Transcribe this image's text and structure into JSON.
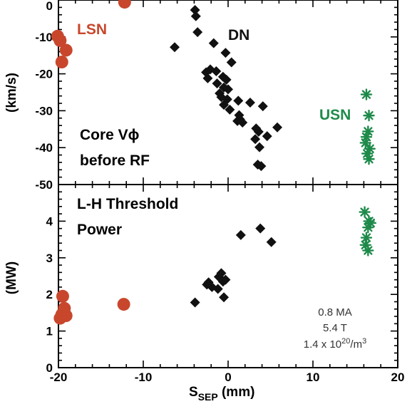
{
  "colors": {
    "lsn": "#c8472c",
    "dn": "#111111",
    "usn": "#1e8a4a"
  },
  "chart_data": [
    {
      "type": "scatter",
      "ylabel": "(km/s)",
      "xlim": [
        -20,
        20
      ],
      "ylim": [
        -50,
        0
      ],
      "yticks": [
        "0",
        "-10",
        "-20",
        "-30",
        "-40",
        "-50"
      ],
      "yticks_values": [
        0,
        -10,
        -20,
        -30,
        -40,
        -50
      ],
      "annotations": {
        "lsn": "LSN",
        "dn": "DN",
        "usn": "USN",
        "line1": "Core Vϕ",
        "line2": "before RF"
      },
      "series": [
        {
          "key": "lsn",
          "marker": "circle",
          "points": [
            [
              -12.2,
              -0.6
            ],
            [
              -20.1,
              -9.8
            ],
            [
              -19.8,
              -11
            ],
            [
              -19.1,
              -13.6
            ],
            [
              -19.6,
              -16.8
            ]
          ]
        },
        {
          "key": "dn",
          "marker": "diamond",
          "points": [
            [
              -3.9,
              -2.7
            ],
            [
              -3.8,
              -4.4
            ],
            [
              -3.6,
              -8.7
            ],
            [
              -6.3,
              -12.8
            ],
            [
              -1.7,
              -11.7
            ],
            [
              -0.3,
              -14.3
            ],
            [
              0.4,
              -16.9
            ],
            [
              -2.6,
              -19.6
            ],
            [
              -2.1,
              -18.8
            ],
            [
              -1.4,
              -19.3
            ],
            [
              -2.4,
              -21.2
            ],
            [
              -0.6,
              -20.8
            ],
            [
              -0.2,
              -21.6
            ],
            [
              -1.3,
              -22.6
            ],
            [
              -0.5,
              -23.7
            ],
            [
              0,
              -24.2
            ],
            [
              -1,
              -25.3
            ],
            [
              -0.8,
              -26.3
            ],
            [
              -0.1,
              -26.9
            ],
            [
              -0.5,
              -28.4
            ],
            [
              0.2,
              -29.7
            ],
            [
              1.2,
              -27.3
            ],
            [
              2.6,
              -27.8
            ],
            [
              4.1,
              -28.8
            ],
            [
              1.3,
              -31.2
            ],
            [
              1.4,
              -32.3
            ],
            [
              1.1,
              -32.8
            ],
            [
              1.7,
              -33.2
            ],
            [
              3.3,
              -34.8
            ],
            [
              3.6,
              -35.7
            ],
            [
              5.8,
              -34.5
            ],
            [
              4.6,
              -36.9
            ],
            [
              3.2,
              -37.7
            ],
            [
              3.7,
              -39.9
            ],
            [
              3.5,
              -44.6
            ],
            [
              3.9,
              -45
            ]
          ]
        },
        {
          "key": "usn",
          "marker": "asterisk",
          "points": [
            [
              16.3,
              -25.6
            ],
            [
              16.6,
              -31.3
            ],
            [
              16.5,
              -35.6
            ],
            [
              16.3,
              -37.1
            ],
            [
              16.2,
              -38.7
            ],
            [
              16.7,
              -40.3
            ],
            [
              16.4,
              -41.6
            ],
            [
              16.6,
              -43.1
            ]
          ]
        }
      ]
    },
    {
      "type": "scatter",
      "ylabel": "(MW)",
      "xlabel_main": "S",
      "xlabel_sub": "SEP",
      "xlabel_rest": " (mm)",
      "xlim": [
        -20,
        20
      ],
      "ylim": [
        0,
        5
      ],
      "xticks": [
        "-20",
        "-10",
        "0",
        "10",
        "20"
      ],
      "xticks_values": [
        -20,
        -10,
        0,
        10,
        20
      ],
      "yticks": [
        "0",
        "1",
        "2",
        "3",
        "4"
      ],
      "yticks_values": [
        0,
        1,
        2,
        3,
        4
      ],
      "annotations": {
        "title1": "L-H Threshold",
        "title2": "Power"
      },
      "note": {
        "line1": "0.8 MA",
        "line2": "5.4 T",
        "line3_pre": "1.4 x 10",
        "line3_sup": "20",
        "line3_post": "/m",
        "line3_sup2": "3"
      },
      "series": [
        {
          "key": "lsn",
          "marker": "circle",
          "points": [
            [
              -19.5,
              1.95
            ],
            [
              -19.3,
              1.62
            ],
            [
              -19.6,
              1.45
            ],
            [
              -19.1,
              1.42
            ],
            [
              -19.8,
              1.35
            ],
            [
              -12.3,
              1.73
            ]
          ]
        },
        {
          "key": "dn",
          "marker": "diamond",
          "points": [
            [
              -3.9,
              1.78
            ],
            [
              -2.5,
              2.27
            ],
            [
              -1.9,
              2.2
            ],
            [
              -2.3,
              2.33
            ],
            [
              -1.1,
              2.48
            ],
            [
              -0.8,
              2.58
            ],
            [
              -1.2,
              2.15
            ],
            [
              -0.6,
              2.35
            ],
            [
              -0.3,
              2.4
            ],
            [
              -0.5,
              1.92
            ],
            [
              1.5,
              3.62
            ],
            [
              3.8,
              3.8
            ],
            [
              5.1,
              3.43
            ]
          ]
        },
        {
          "key": "usn",
          "marker": "asterisk",
          "points": [
            [
              16.1,
              4.25
            ],
            [
              16.6,
              4.0
            ],
            [
              16.8,
              3.95
            ],
            [
              16.5,
              3.83
            ],
            [
              16.3,
              3.55
            ],
            [
              16.2,
              3.35
            ],
            [
              16.5,
              3.2
            ]
          ]
        }
      ]
    }
  ]
}
